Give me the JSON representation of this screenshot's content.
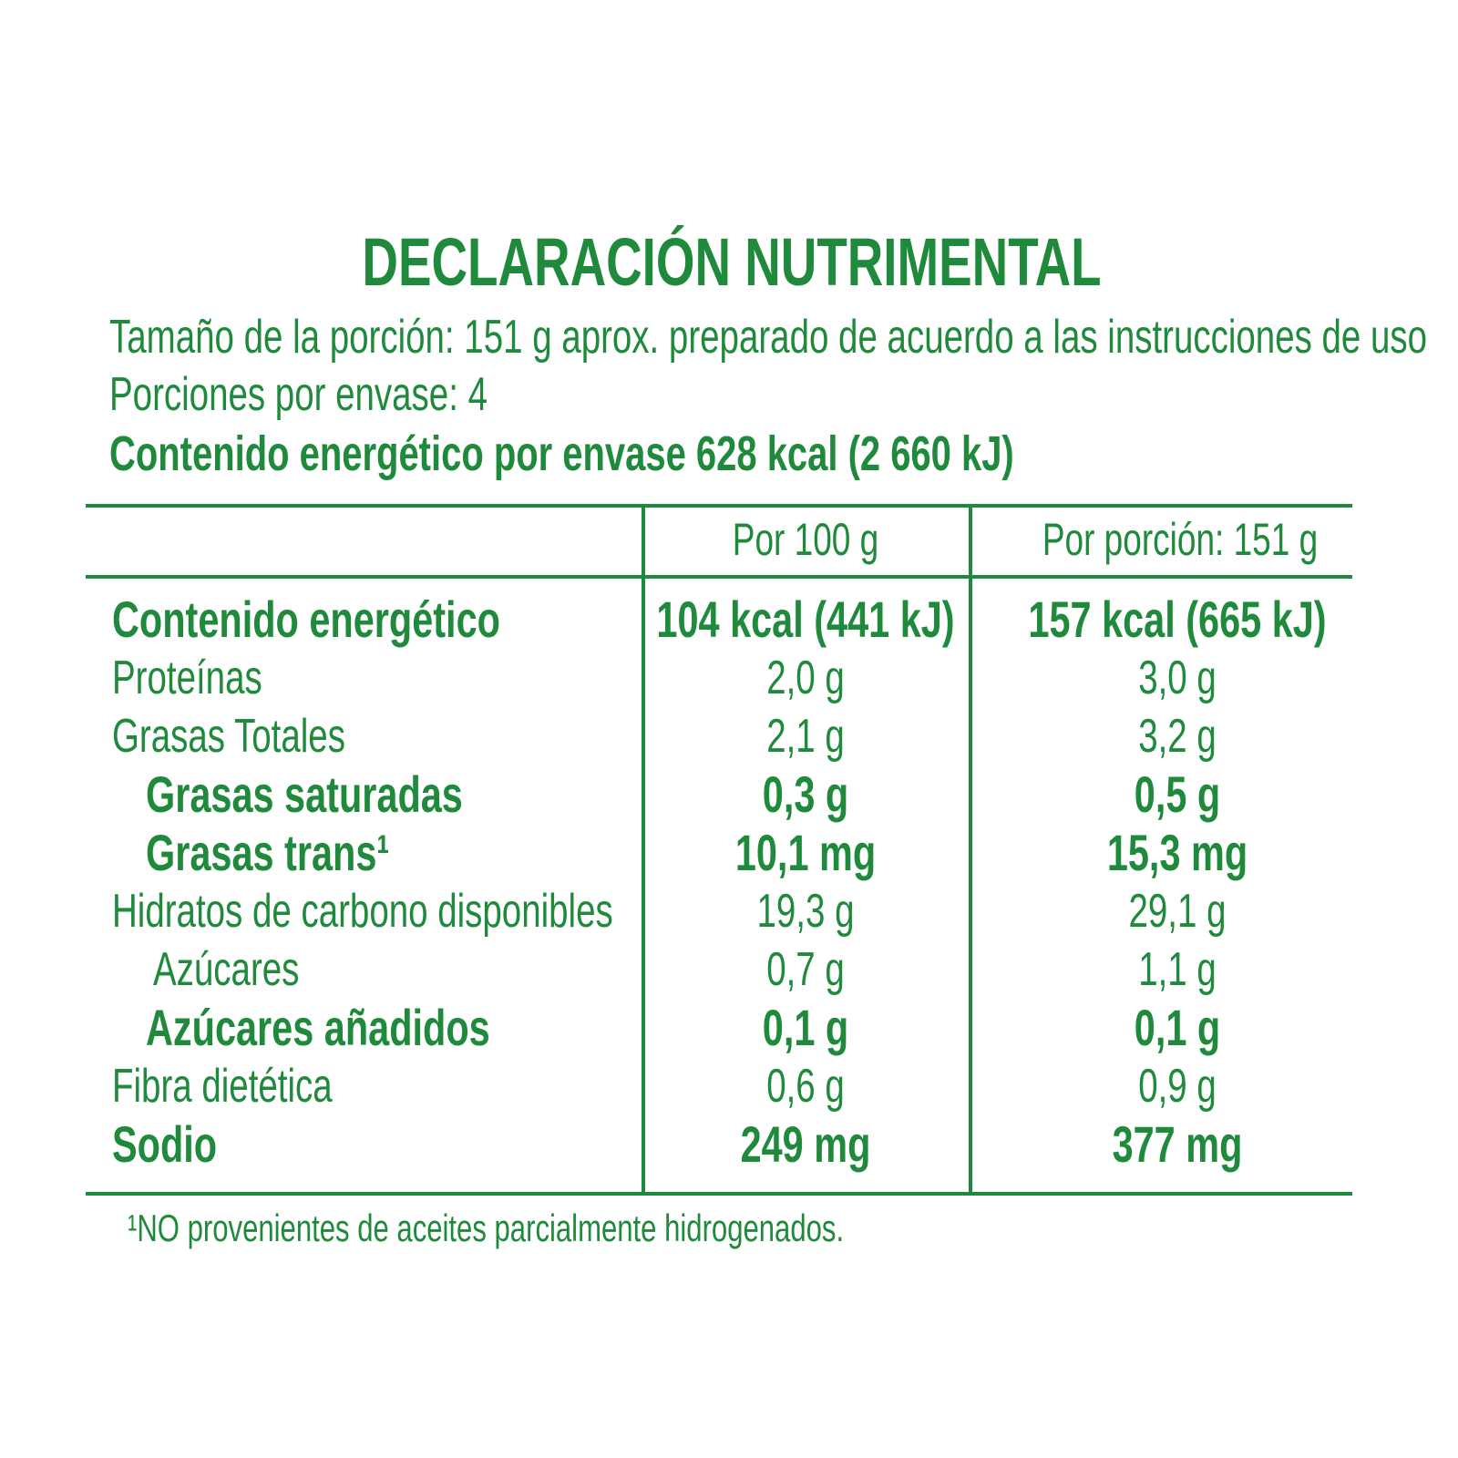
{
  "title": "DECLARACIÓN NUTRIMENTAL",
  "serving_size": "Tamaño de la porción: 151 g aprox. preparado de acuerdo a las instrucciones de uso",
  "servings": "Porciones por envase: 4",
  "energy_per_package": "Contenido energético por envase 628 kcal (2 660 kJ)",
  "table": {
    "headers": [
      "Por 100 g",
      "Por porción: 151 g"
    ],
    "rows": [
      {
        "label": "Contenido energético",
        "per_100g": "104 kcal (441 kJ)",
        "per_serving": "157 kcal (665 kJ)",
        "bold": true,
        "indent": 0
      },
      {
        "label": "Proteínas",
        "per_100g": "2,0 g",
        "per_serving": "3,0 g",
        "bold": false,
        "indent": 0
      },
      {
        "label": "Grasas Totales",
        "per_100g": "2,1 g",
        "per_serving": "3,2 g",
        "bold": false,
        "indent": 0
      },
      {
        "label": "Grasas saturadas",
        "per_100g": "0,3 g",
        "per_serving": "0,5 g",
        "bold": true,
        "indent": 1
      },
      {
        "label": "Grasas trans¹",
        "per_100g": "10,1 mg",
        "per_serving": "15,3 mg",
        "bold": true,
        "indent": 1
      },
      {
        "label": "Hidratos de carbono disponibles",
        "per_100g": "19,3 g",
        "per_serving": "29,1 g",
        "bold": false,
        "indent": 0
      },
      {
        "label": "Azúcares",
        "per_100g": "0,7 g",
        "per_serving": "1,1 g",
        "bold": false,
        "indent": 1
      },
      {
        "label": "Azúcares añadidos",
        "per_100g": "0,1 g",
        "per_serving": "0,1 g",
        "bold": true,
        "indent": 1
      },
      {
        "label": "Fibra dietética",
        "per_100g": "0,6 g",
        "per_serving": "0,9 g",
        "bold": false,
        "indent": 0
      },
      {
        "label": "Sodio",
        "per_100g": "249 mg",
        "per_serving": "377 mg",
        "bold": true,
        "indent": 0
      }
    ]
  },
  "footnote": "¹NO provenientes de aceites parcialmente hidrogenados."
}
